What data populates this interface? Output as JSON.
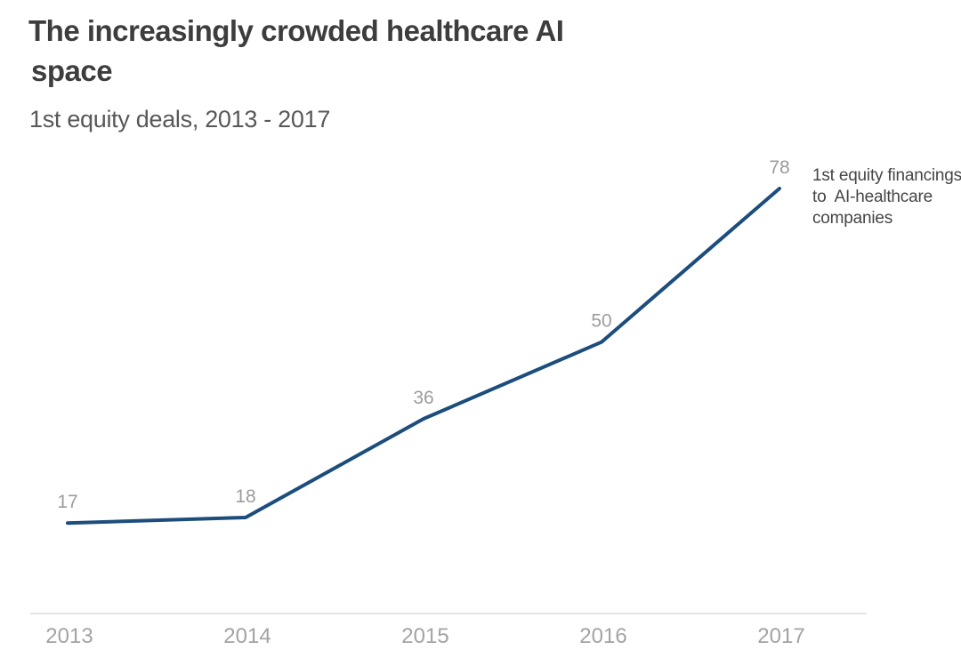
{
  "header": {
    "title_lines": [
      "The increasingly crowded healthcare AI",
      "space"
    ],
    "subtitle": "1st equity deals, 2013 - 2017"
  },
  "annotation": {
    "lines": [
      "1st equity financings",
      "to  AI-healthcare",
      "companies"
    ]
  },
  "chart_data": {
    "type": "line",
    "title": "The increasingly crowded healthcare AI space",
    "subtitle": "1st equity deals, 2013 - 2017",
    "categories": [
      "2013",
      "2014",
      "2015",
      "2016",
      "2017"
    ],
    "series": [
      {
        "name": "1st equity financings to AI-healthcare companies",
        "values": [
          17,
          18,
          36,
          50,
          78
        ]
      }
    ],
    "xlabel": "",
    "ylabel": "",
    "ylim": [
      0,
      85
    ],
    "grid": false,
    "legend_position": "annotation-right",
    "data_labels_shown": true,
    "colors": {
      "line": "#1c4d7c",
      "data_label": "#9c9c9c",
      "tick_label": "#a3a3a3",
      "axis_line": "#e3e3e3"
    }
  }
}
